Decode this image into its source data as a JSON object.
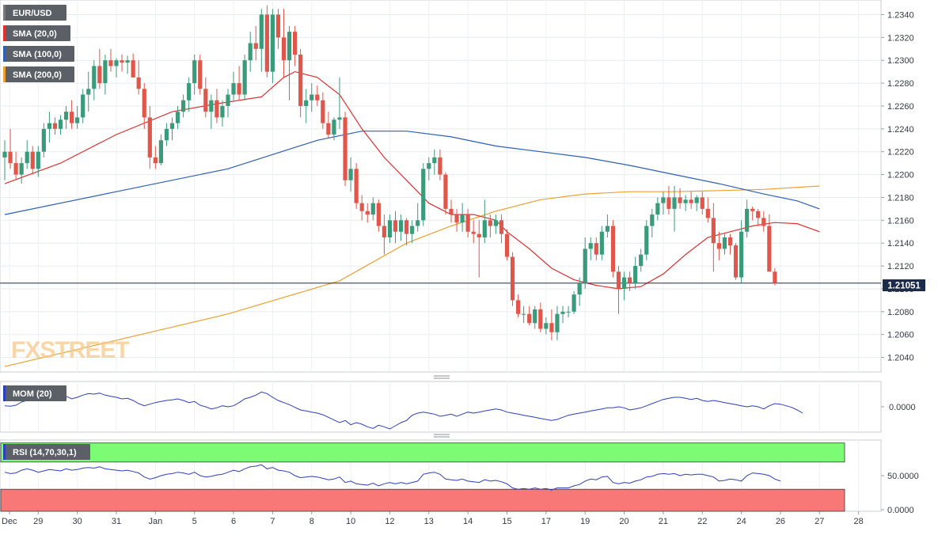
{
  "chart_data": {
    "type": "candlestick",
    "symbol": "EUR/USD",
    "watermark": "FXSTREET",
    "last_price_label": "1.21051",
    "last_price": 1.2105,
    "ylim": [
      1.203,
      1.235
    ],
    "y_ticks": [
      "1.2040",
      "1.2060",
      "1.2080",
      "1.2100",
      "1.2120",
      "1.2140",
      "1.2160",
      "1.2180",
      "1.2200",
      "1.2220",
      "1.2240",
      "1.2260",
      "1.2280",
      "1.2300",
      "1.2320",
      "1.2340"
    ],
    "x_labels": [
      "Dec",
      "29",
      "30",
      "31",
      "Jan",
      "5",
      "6",
      "7",
      "8",
      "10",
      "12",
      "13",
      "14",
      "15",
      "17",
      "19",
      "20",
      "21",
      "22",
      "24",
      "26",
      "27",
      "28"
    ],
    "x_label_bars": [
      0,
      6,
      13,
      20,
      27,
      34,
      41,
      48,
      55,
      62,
      69,
      76,
      83,
      90,
      97,
      104,
      111,
      118,
      125,
      132,
      139,
      146,
      153
    ],
    "legend": [
      {
        "label": "EUR/USD",
        "color": "#7a7a7a"
      },
      {
        "label": "SMA (20,0)",
        "color": "#e03030"
      },
      {
        "label": "SMA (100,0)",
        "color": "#2d5fb5"
      },
      {
        "label": "SMA (200,0)",
        "color": "#f0a030"
      }
    ],
    "ohlc": [
      [
        1.2215,
        1.223,
        1.2195,
        1.222
      ],
      [
        1.222,
        1.224,
        1.2205,
        1.221
      ],
      [
        1.221,
        1.222,
        1.2195,
        1.22
      ],
      [
        1.22,
        1.2215,
        1.2192,
        1.221
      ],
      [
        1.221,
        1.223,
        1.2205,
        1.222
      ],
      [
        1.222,
        1.2225,
        1.22,
        1.2205
      ],
      [
        1.2205,
        1.2225,
        1.2198,
        1.222
      ],
      [
        1.222,
        1.2245,
        1.2215,
        1.224
      ],
      [
        1.224,
        1.2255,
        1.2228,
        1.2245
      ],
      [
        1.2245,
        1.225,
        1.2235,
        1.224
      ],
      [
        1.224,
        1.2252,
        1.2235,
        1.2248
      ],
      [
        1.2248,
        1.226,
        1.224,
        1.2255
      ],
      [
        1.2255,
        1.2265,
        1.224,
        1.2245
      ],
      [
        1.2245,
        1.226,
        1.224,
        1.225
      ],
      [
        1.225,
        1.2275,
        1.2245,
        1.227
      ],
      [
        1.227,
        1.229,
        1.2255,
        1.2275
      ],
      [
        1.2275,
        1.23,
        1.2265,
        1.2295
      ],
      [
        1.2295,
        1.231,
        1.2275,
        1.228
      ],
      [
        1.228,
        1.2305,
        1.227,
        1.23
      ],
      [
        1.23,
        1.231,
        1.229,
        1.2295
      ],
      [
        1.2295,
        1.2302,
        1.2285,
        1.23
      ],
      [
        1.23,
        1.2305,
        1.229,
        1.2298
      ],
      [
        1.2298,
        1.2304,
        1.2288,
        1.23
      ],
      [
        1.23,
        1.2306,
        1.2285,
        1.2285
      ],
      [
        1.2285,
        1.23,
        1.227,
        1.2275
      ],
      [
        1.2275,
        1.228,
        1.224,
        1.225
      ],
      [
        1.225,
        1.226,
        1.2205,
        1.2215
      ],
      [
        1.2215,
        1.2225,
        1.2205,
        1.221
      ],
      [
        1.221,
        1.2235,
        1.2208,
        1.223
      ],
      [
        1.223,
        1.2245,
        1.2225,
        1.224
      ],
      [
        1.224,
        1.225,
        1.223,
        1.2245
      ],
      [
        1.2245,
        1.226,
        1.224,
        1.2255
      ],
      [
        1.2255,
        1.227,
        1.225,
        1.2265
      ],
      [
        1.2265,
        1.2285,
        1.2255,
        1.228
      ],
      [
        1.228,
        1.2305,
        1.227,
        1.23
      ],
      [
        1.23,
        1.2305,
        1.227,
        1.2275
      ],
      [
        1.2275,
        1.2285,
        1.225,
        1.2255
      ],
      [
        1.2255,
        1.227,
        1.224,
        1.2265
      ],
      [
        1.2265,
        1.2275,
        1.2245,
        1.225
      ],
      [
        1.225,
        1.2265,
        1.2242,
        1.226
      ],
      [
        1.226,
        1.2275,
        1.225,
        1.227
      ],
      [
        1.227,
        1.229,
        1.2265,
        1.228
      ],
      [
        1.228,
        1.2295,
        1.2265,
        1.227
      ],
      [
        1.227,
        1.2305,
        1.2265,
        1.23
      ],
      [
        1.23,
        1.2325,
        1.229,
        1.2315
      ],
      [
        1.2315,
        1.233,
        1.23,
        1.231
      ],
      [
        1.231,
        1.2345,
        1.229,
        1.234
      ],
      [
        1.234,
        1.2348,
        1.2285,
        1.229
      ],
      [
        1.229,
        1.2345,
        1.228,
        1.234
      ],
      [
        1.234,
        1.2345,
        1.231,
        1.232
      ],
      [
        1.232,
        1.2345,
        1.2285,
        1.23
      ],
      [
        1.23,
        1.233,
        1.2265,
        1.2325
      ],
      [
        1.2325,
        1.233,
        1.2295,
        1.2305
      ],
      [
        1.2305,
        1.231,
        1.225,
        1.226
      ],
      [
        1.226,
        1.2275,
        1.2245,
        1.2265
      ],
      [
        1.2265,
        1.228,
        1.2255,
        1.227
      ],
      [
        1.227,
        1.2278,
        1.226,
        1.2265
      ],
      [
        1.2265,
        1.2272,
        1.224,
        1.2245
      ],
      [
        1.2245,
        1.2255,
        1.2232,
        1.2235
      ],
      [
        1.2235,
        1.225,
        1.223,
        1.2248
      ],
      [
        1.2248,
        1.2285,
        1.224,
        1.225
      ],
      [
        1.225,
        1.2255,
        1.219,
        1.2195
      ],
      [
        1.2195,
        1.2215,
        1.2185,
        1.2205
      ],
      [
        1.2205,
        1.221,
        1.217,
        1.2175
      ],
      [
        1.2175,
        1.2182,
        1.216,
        1.2168
      ],
      [
        1.2168,
        1.2175,
        1.2158,
        1.2165
      ],
      [
        1.2165,
        1.218,
        1.216,
        1.2175
      ],
      [
        1.2175,
        1.2178,
        1.215,
        1.2155
      ],
      [
        1.2155,
        1.2165,
        1.213,
        1.2145
      ],
      [
        1.2145,
        1.2165,
        1.214,
        1.216
      ],
      [
        1.216,
        1.2168,
        1.214,
        1.215
      ],
      [
        1.215,
        1.2165,
        1.2142,
        1.216
      ],
      [
        1.216,
        1.2162,
        1.2138,
        1.2148
      ],
      [
        1.2148,
        1.216,
        1.214,
        1.2155
      ],
      [
        1.2155,
        1.2175,
        1.215,
        1.216
      ],
      [
        1.216,
        1.221,
        1.2155,
        1.2205
      ],
      [
        1.2205,
        1.2215,
        1.2195,
        1.221
      ],
      [
        1.221,
        1.2222,
        1.22,
        1.2215
      ],
      [
        1.2215,
        1.2222,
        1.2195,
        1.22
      ],
      [
        1.22,
        1.2202,
        1.2165,
        1.217
      ],
      [
        1.217,
        1.2178,
        1.2158,
        1.2165
      ],
      [
        1.2165,
        1.217,
        1.215,
        1.2158
      ],
      [
        1.2158,
        1.2175,
        1.215,
        1.2165
      ],
      [
        1.2165,
        1.217,
        1.2145,
        1.215
      ],
      [
        1.215,
        1.216,
        1.214,
        1.2148
      ],
      [
        1.2148,
        1.216,
        1.211,
        1.2145
      ],
      [
        1.2145,
        1.2178,
        1.214,
        1.216
      ],
      [
        1.216,
        1.2165,
        1.2145,
        1.2155
      ],
      [
        1.2155,
        1.2165,
        1.2148,
        1.216
      ],
      [
        1.216,
        1.2165,
        1.214,
        1.2148
      ],
      [
        1.2148,
        1.2152,
        1.2125,
        1.2128
      ],
      [
        1.2128,
        1.2132,
        1.2085,
        1.209
      ],
      [
        1.209,
        1.2095,
        1.2075,
        1.2078
      ],
      [
        1.2078,
        1.2085,
        1.207,
        1.2078
      ],
      [
        1.2078,
        1.2085,
        1.2068,
        1.207
      ],
      [
        1.207,
        1.2085,
        1.2065,
        1.2082
      ],
      [
        1.2082,
        1.2088,
        1.2062,
        1.2065
      ],
      [
        1.2065,
        1.2075,
        1.206,
        1.207
      ],
      [
        1.207,
        1.2082,
        1.2055,
        1.2062
      ],
      [
        1.2062,
        1.2085,
        1.2055,
        1.2078
      ],
      [
        1.2078,
        1.2085,
        1.207,
        1.208
      ],
      [
        1.208,
        1.2085,
        1.2075,
        1.208
      ],
      [
        1.208,
        1.2098,
        1.2078,
        1.2095
      ],
      [
        1.2095,
        1.211,
        1.2085,
        1.2105
      ],
      [
        1.2105,
        1.2145,
        1.21,
        1.2135
      ],
      [
        1.2135,
        1.2145,
        1.2125,
        1.214
      ],
      [
        1.214,
        1.2145,
        1.2125,
        1.213
      ],
      [
        1.213,
        1.2155,
        1.2125,
        1.215
      ],
      [
        1.215,
        1.2165,
        1.2145,
        1.2155
      ],
      [
        1.2155,
        1.216,
        1.211,
        1.2115
      ],
      [
        1.2115,
        1.212,
        1.2078,
        1.21
      ],
      [
        1.21,
        1.2115,
        1.209,
        1.211
      ],
      [
        1.211,
        1.2115,
        1.2098,
        1.2105
      ],
      [
        1.2105,
        1.2128,
        1.21,
        1.212
      ],
      [
        1.212,
        1.2135,
        1.2115,
        1.213
      ],
      [
        1.213,
        1.216,
        1.2125,
        1.2155
      ],
      [
        1.2155,
        1.217,
        1.2145,
        1.2165
      ],
      [
        1.2165,
        1.218,
        1.216,
        1.2175
      ],
      [
        1.2175,
        1.2185,
        1.2165,
        1.218
      ],
      [
        1.218,
        1.219,
        1.2165,
        1.217
      ],
      [
        1.217,
        1.219,
        1.215,
        1.218
      ],
      [
        1.218,
        1.2188,
        1.217,
        1.2175
      ],
      [
        1.2175,
        1.2182,
        1.2168,
        1.2178
      ],
      [
        1.2178,
        1.2185,
        1.217,
        1.2175
      ],
      [
        1.2175,
        1.2182,
        1.2168,
        1.218
      ],
      [
        1.218,
        1.2185,
        1.2165,
        1.217
      ],
      [
        1.217,
        1.218,
        1.2158,
        1.2162
      ],
      [
        1.2162,
        1.2175,
        1.2115,
        1.214
      ],
      [
        1.214,
        1.215,
        1.2125,
        1.2135
      ],
      [
        1.2135,
        1.2148,
        1.213,
        1.2145
      ],
      [
        1.2145,
        1.2148,
        1.213,
        1.2138
      ],
      [
        1.2138,
        1.214,
        1.2108,
        1.211
      ],
      [
        1.211,
        1.216,
        1.2105,
        1.215
      ],
      [
        1.215,
        1.2178,
        1.2145,
        1.217
      ],
      [
        1.217,
        1.2172,
        1.216,
        1.2168
      ],
      [
        1.2168,
        1.217,
        1.2155,
        1.2162
      ],
      [
        1.2162,
        1.2168,
        1.215,
        1.2155
      ],
      [
        1.2155,
        1.2165,
        1.2115,
        1.2115
      ],
      [
        1.2115,
        1.2118,
        1.2103,
        1.2105
      ]
    ],
    "sma20": [
      [
        0,
        1.2192
      ],
      [
        10,
        1.221
      ],
      [
        20,
        1.2235
      ],
      [
        30,
        1.2255
      ],
      [
        38,
        1.2262
      ],
      [
        46,
        1.2268
      ],
      [
        50,
        1.2285
      ],
      [
        52,
        1.229
      ],
      [
        56,
        1.2285
      ],
      [
        60,
        1.227
      ],
      [
        64,
        1.224
      ],
      [
        68,
        1.2215
      ],
      [
        72,
        1.2195
      ],
      [
        76,
        1.2175
      ],
      [
        80,
        1.2165
      ],
      [
        84,
        1.2165
      ],
      [
        88,
        1.216
      ],
      [
        90,
        1.215
      ],
      [
        94,
        1.2135
      ],
      [
        98,
        1.2118
      ],
      [
        102,
        1.2108
      ],
      [
        106,
        1.2103
      ],
      [
        110,
        1.21
      ],
      [
        114,
        1.2102
      ],
      [
        118,
        1.2113
      ],
      [
        122,
        1.213
      ],
      [
        126,
        1.2145
      ],
      [
        130,
        1.215
      ],
      [
        134,
        1.2155
      ],
      [
        138,
        1.2158
      ],
      [
        142,
        1.2157
      ],
      [
        146,
        1.215
      ]
    ],
    "sma100": [
      [
        0,
        1.2165
      ],
      [
        20,
        1.2185
      ],
      [
        40,
        1.2205
      ],
      [
        56,
        1.223
      ],
      [
        64,
        1.2238
      ],
      [
        72,
        1.2238
      ],
      [
        80,
        1.2233
      ],
      [
        88,
        1.2225
      ],
      [
        96,
        1.222
      ],
      [
        104,
        1.2215
      ],
      [
        112,
        1.2208
      ],
      [
        120,
        1.22
      ],
      [
        128,
        1.2192
      ],
      [
        136,
        1.2183
      ],
      [
        142,
        1.2177
      ],
      [
        146,
        1.217
      ]
    ],
    "sma200": [
      [
        0,
        1.2032
      ],
      [
        20,
        1.2055
      ],
      [
        40,
        1.2078
      ],
      [
        60,
        1.2107
      ],
      [
        72,
        1.214
      ],
      [
        80,
        1.2155
      ],
      [
        88,
        1.2168
      ],
      [
        96,
        1.2178
      ],
      [
        104,
        1.2183
      ],
      [
        112,
        1.2185
      ],
      [
        120,
        1.2185
      ],
      [
        128,
        1.2186
      ],
      [
        136,
        1.2187
      ],
      [
        146,
        1.219
      ]
    ],
    "mom": {
      "label": "MOM (20)",
      "tick_label": "0.0000",
      "ylim": [
        -0.0045,
        0.0045
      ],
      "values": [
        0.0002,
        0.0001,
        0.0003,
        0.0009,
        0.0012,
        0.0015,
        0.0012,
        0.0018,
        0.002,
        0.0016,
        0.0018,
        0.002,
        0.0015,
        0.0018,
        0.0022,
        0.0025,
        0.0024,
        0.0026,
        0.0022,
        0.002,
        0.0018,
        0.0015,
        0.0016,
        0.0012,
        0.0006,
        0.0002,
        0.0005,
        0.0008,
        0.001,
        0.0012,
        0.0013,
        0.0015,
        0.0012,
        0.0008,
        0.001,
        0.0003,
        0.0,
        -0.0004,
        -0.0002,
        0.0002,
        0.0,
        0.0002,
        0.0008,
        0.0015,
        0.0018,
        0.0022,
        0.0028,
        0.0025,
        0.0018,
        0.0012,
        0.0008,
        0.0004,
        -0.0001,
        -0.0006,
        -0.0008,
        -0.001,
        -0.0012,
        -0.0015,
        -0.002,
        -0.0025,
        -0.003,
        -0.0026,
        -0.0034,
        -0.003,
        -0.0033,
        -0.0038,
        -0.0041,
        -0.0035,
        -0.0038,
        -0.0042,
        -0.0036,
        -0.003,
        -0.0026,
        -0.0016,
        -0.0012,
        -0.001,
        -0.0012,
        -0.0014,
        -0.0018,
        -0.0016,
        -0.0014,
        -0.0018,
        -0.0014,
        -0.001,
        -0.0012,
        -0.001,
        -0.0008,
        -0.0006,
        -0.0004,
        -0.0006,
        -0.001,
        -0.0012,
        -0.0014,
        -0.0016,
        -0.0018,
        -0.002,
        -0.0022,
        -0.0024,
        -0.0026,
        -0.0024,
        -0.002,
        -0.0016,
        -0.0014,
        -0.0012,
        -0.001,
        -0.0008,
        -0.0006,
        -0.0004,
        -0.0002,
        -0.0002,
        0.0,
        -0.0002,
        -0.0006,
        -0.0004,
        -0.0002,
        0.0002,
        0.0006,
        0.001,
        0.0014,
        0.0016,
        0.0018,
        0.0018,
        0.0016,
        0.0014,
        0.0016,
        0.0012,
        0.001,
        0.0012,
        0.001,
        0.0008,
        0.0006,
        0.0004,
        0.0002,
        0.0,
        0.0002,
        0.0,
        -0.0004,
        0.0002,
        0.0006,
        0.0005,
        0.0002,
        -0.0001,
        -0.0006,
        -0.0012
      ]
    },
    "rsi": {
      "label": "RSI (14,70,30,1)",
      "tick_labels": [
        "50.0000",
        "0.0000"
      ],
      "ylim": [
        0,
        100
      ],
      "upper": 70,
      "lower": 30,
      "values": [
        55,
        53,
        54,
        58,
        60,
        58,
        55,
        57,
        59,
        58,
        57,
        60,
        58,
        59,
        61,
        62,
        61,
        63,
        60,
        59,
        58,
        57,
        58,
        56,
        54,
        48,
        45,
        47,
        50,
        52,
        53,
        55,
        54,
        52,
        55,
        50,
        48,
        49,
        51,
        52,
        55,
        58,
        56,
        60,
        63,
        64,
        66,
        60,
        62,
        58,
        57,
        55,
        50,
        47,
        48,
        49,
        48,
        46,
        44,
        45,
        48,
        40,
        42,
        38,
        37,
        36,
        39,
        35,
        38,
        40,
        38,
        40,
        38,
        40,
        42,
        52,
        54,
        55,
        52,
        45,
        44,
        43,
        45,
        42,
        41,
        40,
        44,
        42,
        43,
        41,
        38,
        32,
        30,
        31,
        30,
        32,
        30,
        31,
        29,
        32,
        32,
        32,
        35,
        37,
        42,
        45,
        44,
        48,
        49,
        40,
        38,
        40,
        39,
        42,
        44,
        48,
        49,
        52,
        53,
        52,
        53,
        50,
        52,
        51,
        52,
        52,
        50,
        48,
        42,
        43,
        45,
        44,
        42,
        50,
        54,
        53,
        52,
        50,
        45,
        42
      ]
    }
  }
}
